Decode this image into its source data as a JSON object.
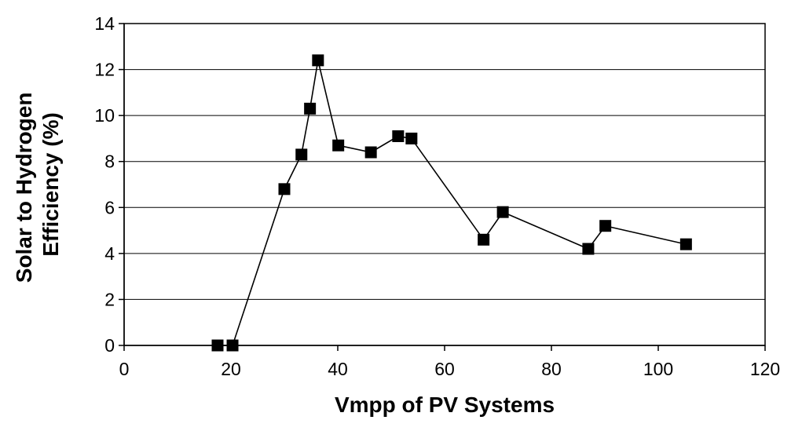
{
  "chart_data": {
    "type": "scatter",
    "title": "",
    "xlabel": "Vmpp of PV Systems",
    "ylabel_lines": [
      "Solar to Hydrogen",
      "Efficiency (%)"
    ],
    "xlim": [
      0,
      120
    ],
    "ylim": [
      0,
      14
    ],
    "xticks": [
      0,
      20,
      40,
      60,
      80,
      100,
      120
    ],
    "yticks": [
      0,
      2,
      4,
      6,
      8,
      10,
      12,
      14
    ],
    "grid": "horizontal",
    "marker": "square",
    "series": [
      {
        "x": [
          17.5,
          20.3,
          30.0,
          33.2,
          34.8,
          36.3,
          40.1,
          46.2,
          51.3,
          53.8,
          67.3,
          70.9,
          86.9,
          90.1,
          105.2
        ],
        "y": [
          0.0,
          0.0,
          6.8,
          8.3,
          10.3,
          12.4,
          8.7,
          8.4,
          9.1,
          9.0,
          4.6,
          5.8,
          4.2,
          5.2,
          4.4
        ]
      }
    ]
  }
}
